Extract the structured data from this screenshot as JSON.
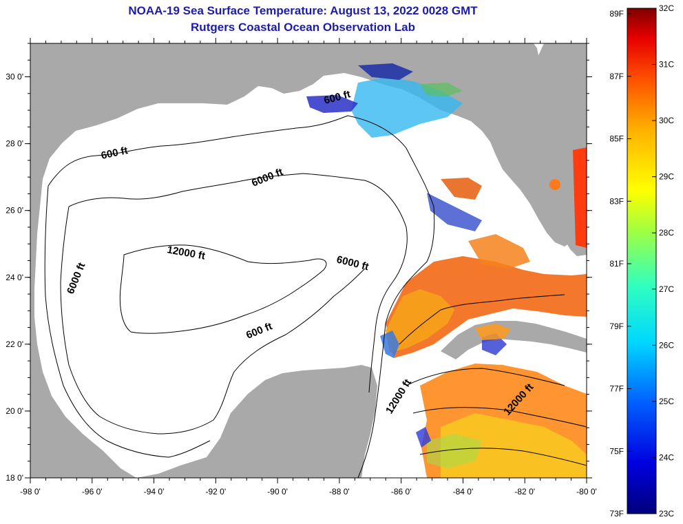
{
  "title_line1": "NOAA-19 Sea Surface Temperature:  August 13, 2022 0028 GMT",
  "title_line2": "Rutgers Coastal Ocean Observation Lab",
  "map": {
    "lon_range": [
      -98,
      -80
    ],
    "lat_range": [
      18,
      31
    ],
    "lon_ticks": [
      "-98 0'",
      "-96 0'",
      "-94 0'",
      "-92 0'",
      "-90 0'",
      "-88 0'",
      "-86 0'",
      "-84 0'",
      "-82 0'",
      "-80 0'"
    ],
    "lat_ticks": [
      "18 0'",
      "20 0'",
      "22 0'",
      "24 0'",
      "26 0'",
      "28 0'",
      "30 0'"
    ],
    "contour_labels": {
      "c600_west": "600 ft",
      "c600_north": "600 ft",
      "c600_south": "600 ft",
      "c6000_north": "6000 ft",
      "c6000_west": "6000 ft",
      "c6000_east": "6000 ft",
      "c12000_center": "12000 ft",
      "c12000_yucatan": "12000 ft",
      "c12000_cuba": "12000 ft"
    },
    "colors": {
      "land": "#a9a9a9",
      "sea": "#ffffff"
    }
  },
  "colorbar": {
    "fahrenheit": [
      "89F",
      "87F",
      "85F",
      "83F",
      "81F",
      "79F",
      "77F",
      "75F",
      "73F"
    ],
    "celsius": [
      "32C",
      "31C",
      "30C",
      "29C",
      "28C",
      "27C",
      "26C",
      "25C",
      "24C",
      "23C"
    ]
  }
}
